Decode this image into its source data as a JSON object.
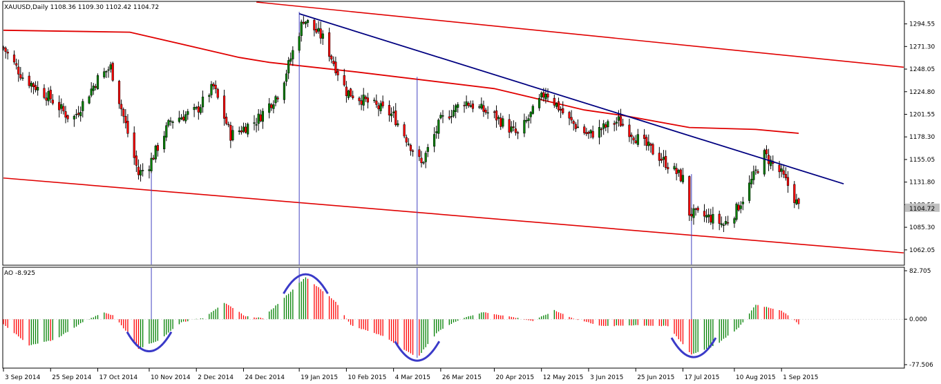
{
  "header": {
    "main": "XAUUSD,Daily  1108.36 1109.30 1102.42 1104.72",
    "ao": "AO -8.925"
  },
  "last_price": "1104.72",
  "colors": {
    "up": "#008000",
    "down": "#ff0000",
    "ma": "#e00000",
    "channel": "#e00000",
    "trend": "#000080",
    "vline": "#4040c0",
    "arc": "#3a3ac8",
    "grid": "#e0e0e0",
    "axis": "#000000"
  },
  "chart_data": {
    "type": "candlestick",
    "grid": false,
    "price_axis": {
      "range": [
        1047,
        1317
      ],
      "ticks": [
        "1294.55",
        "1271.30",
        "1248.05",
        "1224.80",
        "1201.55",
        "1178.30",
        "1155.05",
        "1131.80",
        "1108.55",
        "1085.30",
        "1062.05"
      ]
    },
    "time_axis": {
      "range": [
        "2014-09-03",
        "2015-10-28"
      ],
      "ticks": [
        {
          "date": "2014-09-03",
          "label": "3 Sep 2014"
        },
        {
          "date": "2014-09-25",
          "label": "25 Sep 2014"
        },
        {
          "date": "2014-10-17",
          "label": "17 Oct 2014"
        },
        {
          "date": "2014-11-10",
          "label": "10 Nov 2014"
        },
        {
          "date": "2014-12-02",
          "label": "2 Dec 2014"
        },
        {
          "date": "2014-12-24",
          "label": "24 Dec 2014"
        },
        {
          "date": "2015-01-19",
          "label": "19 Jan 2015"
        },
        {
          "date": "2015-02-10",
          "label": "10 Feb 2015"
        },
        {
          "date": "2015-03-04",
          "label": "4 Mar 2015"
        },
        {
          "date": "2015-03-26",
          "label": "26 Mar 2015"
        },
        {
          "date": "2015-04-20",
          "label": "20 Apr 2015"
        },
        {
          "date": "2015-05-12",
          "label": "12 May 2015"
        },
        {
          "date": "2015-06-03",
          "label": "3 Jun 2015"
        },
        {
          "date": "2015-06-25",
          "label": "25 Jun 2015"
        },
        {
          "date": "2015-07-17",
          "label": "17 Jul 2015"
        },
        {
          "date": "2015-08-10",
          "label": "10 Aug 2015"
        },
        {
          "date": "2015-09-01",
          "label": "1 Sep 2015"
        }
      ]
    },
    "close_keypoints": [
      {
        "date": "2014-09-03",
        "close": 1270
      },
      {
        "date": "2014-09-12",
        "close": 1240
      },
      {
        "date": "2014-09-25",
        "close": 1218
      },
      {
        "date": "2014-10-05",
        "close": 1195
      },
      {
        "date": "2014-10-17",
        "close": 1238
      },
      {
        "date": "2014-10-23",
        "close": 1250
      },
      {
        "date": "2014-11-05",
        "close": 1140
      },
      {
        "date": "2014-11-10",
        "close": 1150
      },
      {
        "date": "2014-11-20",
        "close": 1195
      },
      {
        "date": "2014-12-02",
        "close": 1205
      },
      {
        "date": "2014-12-10",
        "close": 1230
      },
      {
        "date": "2014-12-18",
        "close": 1180
      },
      {
        "date": "2014-12-30",
        "close": 1195
      },
      {
        "date": "2015-01-10",
        "close": 1225
      },
      {
        "date": "2015-01-21",
        "close": 1300
      },
      {
        "date": "2015-01-30",
        "close": 1280
      },
      {
        "date": "2015-02-10",
        "close": 1225
      },
      {
        "date": "2015-02-28",
        "close": 1205
      },
      {
        "date": "2015-03-04",
        "close": 1200
      },
      {
        "date": "2015-03-17",
        "close": 1150
      },
      {
        "date": "2015-03-26",
        "close": 1195
      },
      {
        "date": "2015-04-06",
        "close": 1215
      },
      {
        "date": "2015-04-20",
        "close": 1200
      },
      {
        "date": "2015-05-01",
        "close": 1180
      },
      {
        "date": "2015-05-14",
        "close": 1225
      },
      {
        "date": "2015-05-25",
        "close": 1195
      },
      {
        "date": "2015-06-03",
        "close": 1180
      },
      {
        "date": "2015-06-17",
        "close": 1195
      },
      {
        "date": "2015-06-25",
        "close": 1178
      },
      {
        "date": "2015-07-05",
        "close": 1160
      },
      {
        "date": "2015-07-17",
        "close": 1135
      },
      {
        "date": "2015-07-20",
        "close": 1100
      },
      {
        "date": "2015-07-30",
        "close": 1095
      },
      {
        "date": "2015-08-05",
        "close": 1088
      },
      {
        "date": "2015-08-10",
        "close": 1100
      },
      {
        "date": "2015-08-14",
        "close": 1115
      },
      {
        "date": "2015-08-24",
        "close": 1160
      },
      {
        "date": "2015-09-01",
        "close": 1140
      },
      {
        "date": "2015-09-05",
        "close": 1125
      },
      {
        "date": "2015-09-09",
        "close": 1106
      }
    ],
    "moving_average": [
      {
        "date": "2014-09-03",
        "value": 1288
      },
      {
        "date": "2014-11-01",
        "value": 1286
      },
      {
        "date": "2014-12-22",
        "value": 1260
      },
      {
        "date": "2015-01-05",
        "value": 1255
      },
      {
        "date": "2015-02-15",
        "value": 1245
      },
      {
        "date": "2015-04-20",
        "value": 1228
      },
      {
        "date": "2015-06-01",
        "value": 1206
      },
      {
        "date": "2015-06-20",
        "value": 1200
      },
      {
        "date": "2015-07-20",
        "value": 1188
      },
      {
        "date": "2015-08-20",
        "value": 1186
      },
      {
        "date": "2015-09-09",
        "value": 1182
      }
    ],
    "channel_lines": [
      {
        "from": {
          "date": "2014-12-30",
          "price": 1317
        },
        "to": {
          "date": "2015-10-28",
          "price": 1250
        }
      },
      {
        "from": {
          "date": "2014-09-03",
          "price": 1136
        },
        "to": {
          "date": "2015-10-28",
          "price": 1059
        }
      }
    ],
    "trendline": {
      "from": {
        "date": "2015-01-19",
        "price": 1305
      },
      "to": {
        "date": "2015-09-30",
        "price": 1130
      }
    },
    "marker_dates": [
      "2014-11-11",
      "2015-01-19",
      "2015-03-15",
      "2015-07-21"
    ],
    "ao": {
      "range": [
        -77.506,
        82.705
      ],
      "ticks": [
        "82.705",
        "0.000",
        "-77.506"
      ],
      "keypoints": [
        {
          "date": "2014-09-03",
          "value": -8
        },
        {
          "date": "2014-09-15",
          "value": -45
        },
        {
          "date": "2014-09-27",
          "value": -35
        },
        {
          "date": "2014-10-10",
          "value": -5
        },
        {
          "date": "2014-10-20",
          "value": 12
        },
        {
          "date": "2014-10-25",
          "value": 5
        },
        {
          "date": "2014-11-05",
          "value": -50
        },
        {
          "date": "2014-11-15",
          "value": -35
        },
        {
          "date": "2014-11-25",
          "value": -5
        },
        {
          "date": "2014-12-05",
          "value": 2
        },
        {
          "date": "2014-12-15",
          "value": 28
        },
        {
          "date": "2014-12-25",
          "value": 5
        },
        {
          "date": "2015-01-02",
          "value": 2
        },
        {
          "date": "2015-01-10",
          "value": 30
        },
        {
          "date": "2015-01-22",
          "value": 72
        },
        {
          "date": "2015-02-05",
          "value": 30
        },
        {
          "date": "2015-02-12",
          "value": -10
        },
        {
          "date": "2015-02-28",
          "value": -30
        },
        {
          "date": "2015-03-15",
          "value": -66
        },
        {
          "date": "2015-03-25",
          "value": -20
        },
        {
          "date": "2015-04-05",
          "value": 2
        },
        {
          "date": "2015-04-15",
          "value": 12
        },
        {
          "date": "2015-04-28",
          "value": 4
        },
        {
          "date": "2015-05-08",
          "value": -3
        },
        {
          "date": "2015-05-18",
          "value": 15
        },
        {
          "date": "2015-05-28",
          "value": 0
        },
        {
          "date": "2015-06-10",
          "value": -12
        },
        {
          "date": "2015-06-25",
          "value": -10
        },
        {
          "date": "2015-07-10",
          "value": -12
        },
        {
          "date": "2015-07-21",
          "value": -60
        },
        {
          "date": "2015-08-01",
          "value": -45
        },
        {
          "date": "2015-08-12",
          "value": -15
        },
        {
          "date": "2015-08-20",
          "value": 25
        },
        {
          "date": "2015-09-01",
          "value": 15
        },
        {
          "date": "2015-09-09",
          "value": -8
        }
      ]
    }
  }
}
